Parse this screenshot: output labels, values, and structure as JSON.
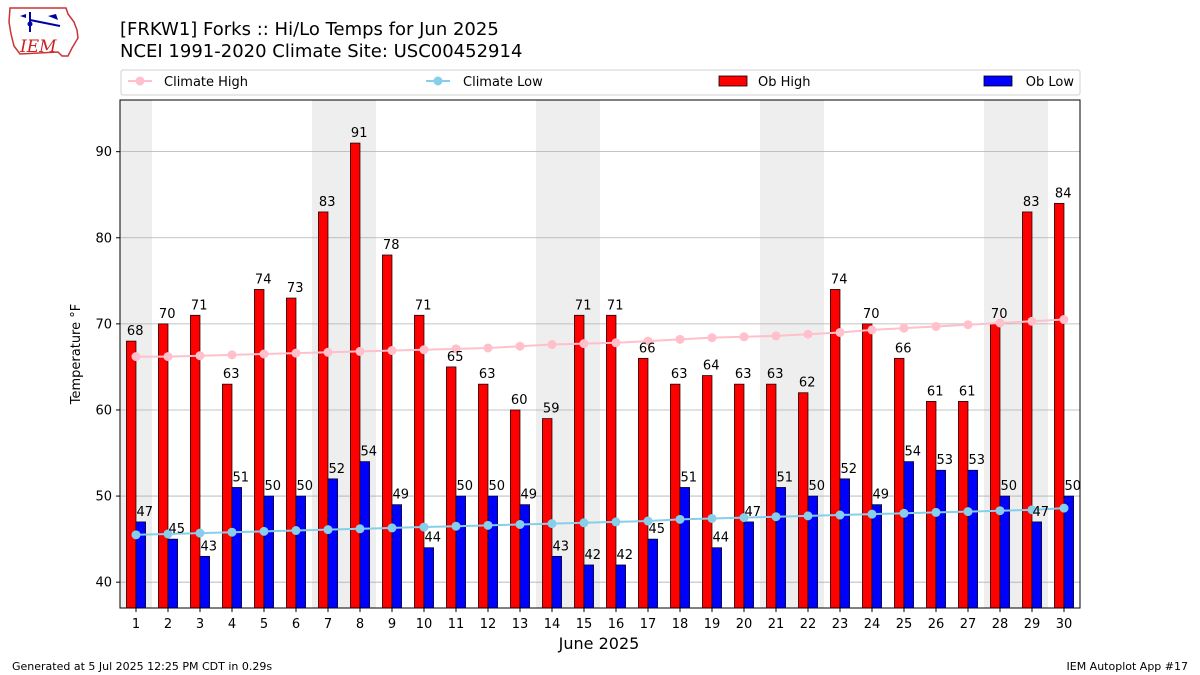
{
  "header": {
    "logo_text": "IEM",
    "title_line1": "[FRKW1] Forks :: Hi/Lo Temps for Jun 2025",
    "title_line2": "NCEI 1991-2020 Climate Site: USC00452914"
  },
  "footer": {
    "left": "Generated at 5 Jul 2025 12:25 PM CDT in 0.29s",
    "right": "IEM Autoplot App #17"
  },
  "colors": {
    "ob_high": "#ff0000",
    "ob_low": "#0000ff",
    "climate_high": "#ffc0cb",
    "climate_low": "#87ceeb",
    "weekend_shade": "#eeeeee",
    "grid": "#b0b0b0"
  },
  "chart_data": {
    "type": "bar",
    "xlabel": "June 2025",
    "ylabel": "Temperature °F",
    "ylim": [
      37,
      96
    ],
    "yticks": [
      40,
      50,
      60,
      70,
      80,
      90
    ],
    "grid": "horizontal",
    "legend_placement": "top",
    "weekend_days": [
      1,
      7,
      8,
      14,
      15,
      21,
      22,
      28,
      29
    ],
    "categories": [
      "1",
      "2",
      "3",
      "4",
      "5",
      "6",
      "7",
      "8",
      "9",
      "10",
      "11",
      "12",
      "13",
      "14",
      "15",
      "16",
      "17",
      "18",
      "19",
      "20",
      "21",
      "22",
      "23",
      "24",
      "25",
      "26",
      "27",
      "28",
      "29",
      "30"
    ],
    "series": [
      {
        "name": "Climate High",
        "kind": "line",
        "values": [
          66.2,
          66.2,
          66.3,
          66.4,
          66.5,
          66.6,
          66.7,
          66.8,
          66.9,
          67.0,
          67.1,
          67.2,
          67.4,
          67.6,
          67.7,
          67.8,
          68.0,
          68.2,
          68.4,
          68.5,
          68.6,
          68.8,
          69.0,
          69.3,
          69.5,
          69.7,
          69.9,
          70.1,
          70.3,
          70.5
        ]
      },
      {
        "name": "Climate Low",
        "kind": "line",
        "values": [
          45.5,
          45.6,
          45.7,
          45.8,
          45.9,
          46.0,
          46.1,
          46.2,
          46.3,
          46.4,
          46.5,
          46.6,
          46.7,
          46.8,
          46.9,
          47.0,
          47.1,
          47.3,
          47.4,
          47.5,
          47.6,
          47.7,
          47.8,
          47.9,
          48.0,
          48.1,
          48.2,
          48.3,
          48.4,
          48.6
        ]
      },
      {
        "name": "Ob High",
        "kind": "bar",
        "values": [
          68,
          70,
          71,
          63,
          74,
          73,
          83,
          91,
          78,
          71,
          65,
          63,
          60,
          59,
          71,
          71,
          66,
          63,
          64,
          63,
          63,
          62,
          74,
          70,
          66,
          61,
          61,
          70,
          83,
          84
        ]
      },
      {
        "name": "Ob Low",
        "kind": "bar",
        "values": [
          47,
          45,
          43,
          51,
          50,
          50,
          52,
          54,
          49,
          44,
          50,
          50,
          49,
          43,
          42,
          42,
          45,
          51,
          44,
          47,
          51,
          50,
          52,
          49,
          54,
          53,
          53,
          50,
          47,
          50
        ]
      }
    ]
  }
}
